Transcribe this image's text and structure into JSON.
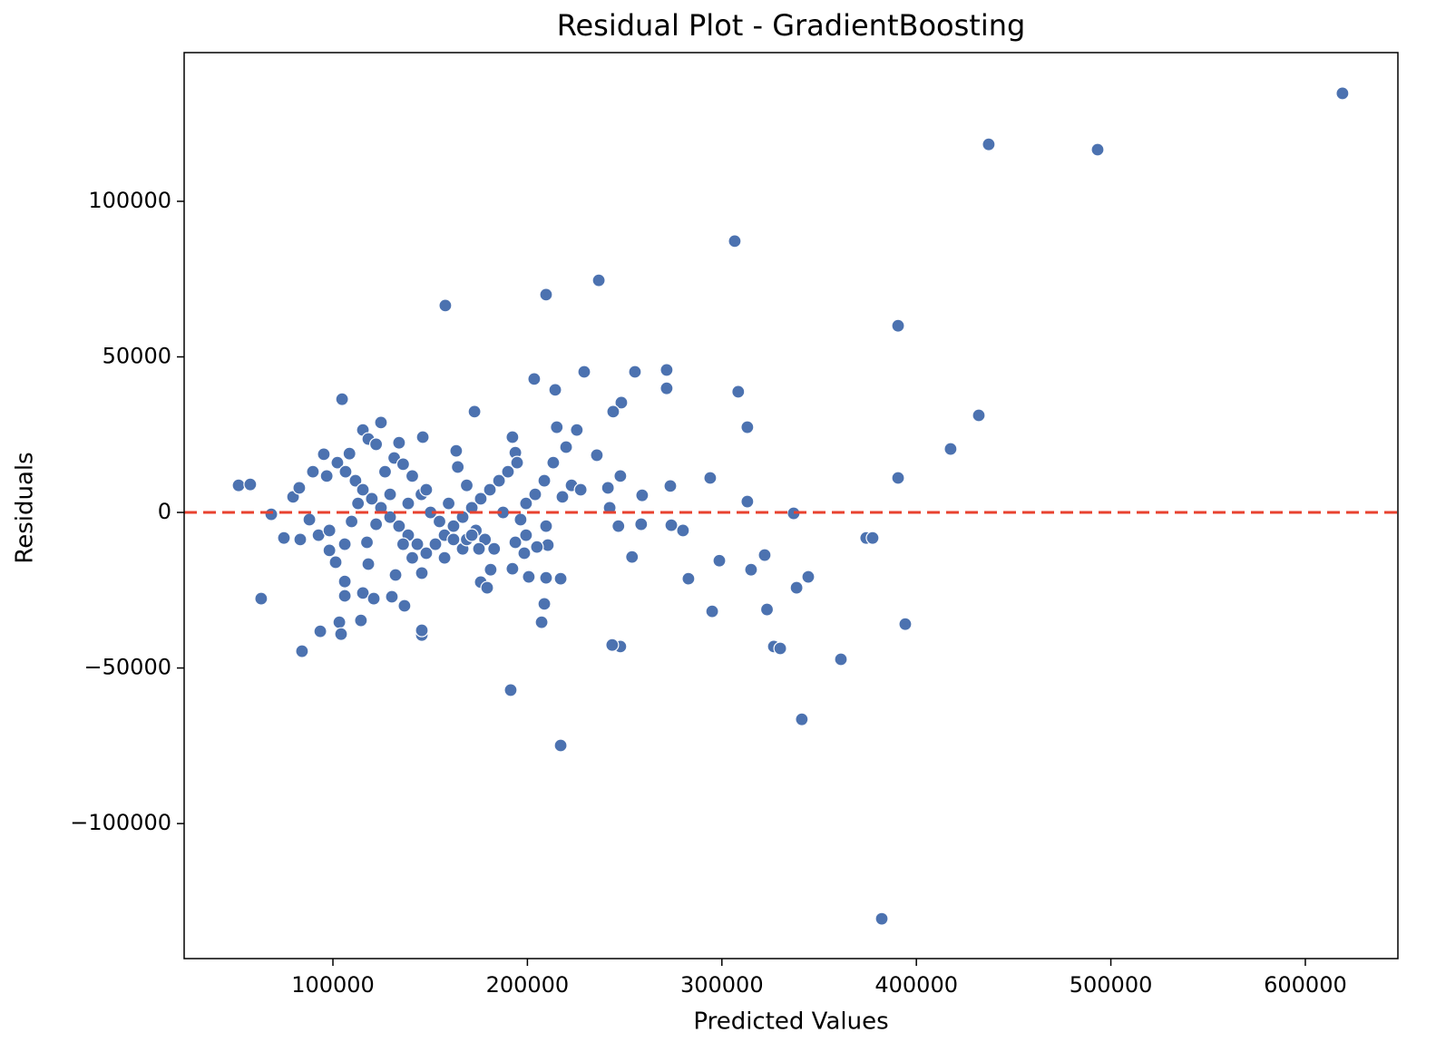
{
  "chart_data": {
    "type": "scatter",
    "title": "Residual Plot - GradientBoosting",
    "x_label": "Predicted Values",
    "y_label": "Residuals",
    "color": "#4c72b0",
    "reference_line": {
      "value": 0,
      "color": "#e8422f"
    },
    "xlim": [
      23500,
      647600
    ],
    "ylim": [
      -143400,
      147800
    ],
    "xticks": [
      100000,
      200000,
      300000,
      400000,
      500000,
      600000
    ],
    "yticks": [
      {
        "value": -100000,
        "label": "−100000"
      },
      {
        "value": -50000,
        "label": "−50000"
      },
      0,
      50000,
      100000
    ],
    "x": [
      619100,
      437200,
      493200,
      306600,
      236700,
      209600,
      157800,
      390600,
      271600,
      255300,
      229200,
      203500,
      214300,
      271600,
      308400,
      248300,
      244100,
      432100,
      172800,
      104700,
      313100,
      215100,
      225400,
      124700,
      115400,
      417600,
      235700,
      219900,
      192300,
      146200,
      134000,
      163400,
      95300,
      193800,
      118200,
      390600,
      294000,
      247800,
      273500,
      313100,
      259000,
      336900,
      374200,
      377500,
      274000,
      280000,
      258500,
      246800,
      253800,
      322000,
      315000,
      298700,
      282800,
      344400,
      338400,
      323200,
      295000,
      394300,
      361200,
      326700,
      330000,
      247800,
      243600,
      341100,
      382200,
      191400,
      217100,
      145700,
      145700,
      93500,
      103300,
      104200,
      84100,
      114400,
      63100,
      106100,
      115400,
      121000,
      130300,
      136800,
      106100,
      132200,
      145700,
      118200,
      176000,
      179300,
      181100,
      192300,
      200700,
      209600,
      217100,
      208700,
      207300,
      209600,
      210500,
      204900,
      198400,
      193800,
      199300,
      196500,
      51500,
      57500,
      68300,
      74800,
      83200,
      87900,
      92600,
      98200,
      98200,
      79500,
      82700,
      89700,
      102300,
      106500,
      111600,
      115400,
      120000,
      124700,
      129400,
      134000,
      138700,
      143400,
      148000,
      152700,
      157400,
      162000,
      166700,
      171400,
      176000,
      180700,
      185400,
      190000,
      194700,
      199300,
      204000,
      208700,
      213300,
      218000,
      222700,
      227400,
      241400,
      242300,
      109600,
      112900,
      117500,
      122200,
      126800,
      131500,
      136100,
      140800,
      145500,
      150200,
      154800,
      159500,
      164200,
      168800,
      173500,
      178200,
      182900,
      187500,
      129400,
      138700,
      148000,
      106100,
      101400,
      136100,
      140800,
      157400,
      166700,
      168800,
      171400,
      175100,
      162000,
      96800,
      108500,
      122200
    ],
    "values": [
      134700,
      118300,
      116600,
      87200,
      74600,
      70000,
      66500,
      60000,
      45800,
      45200,
      45200,
      42900,
      39400,
      39900,
      38800,
      35300,
      32400,
      31200,
      32400,
      36400,
      27400,
      27400,
      26500,
      28900,
      26500,
      20400,
      18400,
      21000,
      24200,
      24200,
      22400,
      19800,
      18700,
      19200,
      23600,
      11100,
      11100,
      11700,
      8500,
      3500,
      5500,
      -300,
      -8200,
      -8200,
      -4100,
      -5800,
      -3800,
      -4400,
      -14300,
      -13700,
      -18400,
      -15500,
      -21300,
      -20700,
      -24200,
      -31200,
      -31800,
      -35900,
      -47200,
      -43100,
      -43700,
      -43100,
      -42600,
      -66500,
      -130600,
      -57100,
      -74900,
      -39400,
      -37900,
      -38200,
      -35300,
      -39100,
      -44600,
      -34700,
      -27700,
      -26800,
      -25900,
      -27700,
      -27100,
      -30000,
      -22200,
      -20100,
      -19500,
      -16600,
      -22400,
      -24200,
      -18400,
      -18100,
      -20700,
      -21000,
      -21300,
      -29400,
      -35300,
      -4400,
      -10500,
      -11100,
      -13100,
      -9600,
      -7300,
      -2300,
      8700,
      9000,
      -600,
      -8200,
      -8700,
      -2300,
      -7300,
      -12200,
      -5800,
      5000,
      7900,
      13100,
      16000,
      13100,
      10200,
      7300,
      4400,
      1500,
      -1500,
      -4400,
      -7300,
      -10200,
      -13100,
      -10200,
      -7300,
      -4400,
      -1500,
      1500,
      4400,
      7300,
      10200,
      13100,
      16000,
      2900,
      5800,
      10200,
      16000,
      5000,
      8700,
      7300,
      7900,
      1500,
      -2900,
      2900,
      -9600,
      -3800,
      13100,
      17500,
      15500,
      11700,
      5800,
      0,
      -2900,
      2900,
      14600,
      8700,
      -5800,
      -8700,
      -11700,
      0,
      5800,
      2900,
      7300,
      -10200,
      -16000,
      -10200,
      -14600,
      -14600,
      -11700,
      -8700,
      -7300,
      -11700,
      -8700,
      11700,
      18900,
      21900
    ]
  }
}
